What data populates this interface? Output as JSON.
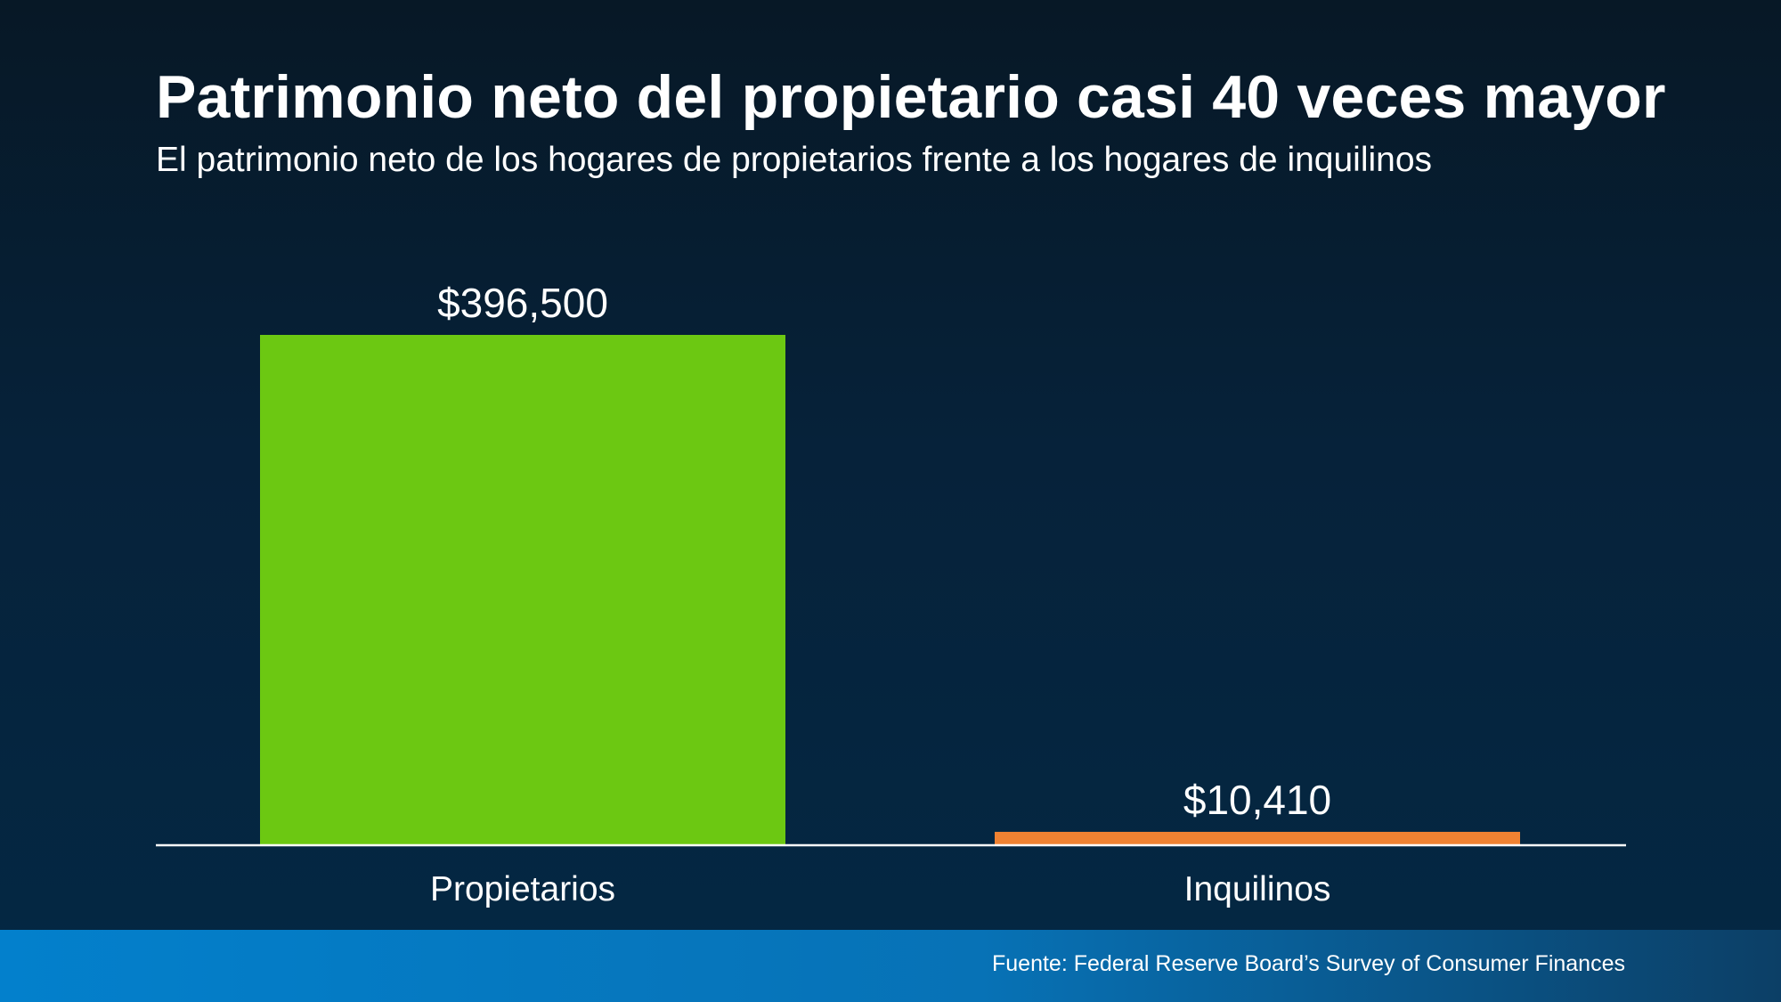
{
  "header": {
    "title": "Patrimonio neto del propietario casi 40 veces mayor",
    "subtitle": "El patrimonio neto de los hogares de propietarios frente a los hogares de inquilinos"
  },
  "chart_data": {
    "type": "bar",
    "categories": [
      "Propietarios",
      "Inquilinos"
    ],
    "values": [
      396500,
      10410
    ],
    "value_labels": [
      "$396,500",
      "$10,410"
    ],
    "colors": [
      "#6cc812",
      "#f08232"
    ],
    "ylim": [
      0,
      396500
    ],
    "grid": false,
    "legend": "none"
  },
  "footer": {
    "source": "Fuente: Federal Reserve Board’s Survey of Consumer Finances"
  }
}
